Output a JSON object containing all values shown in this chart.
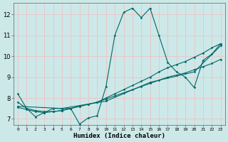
{
  "xlabel": "Humidex (Indice chaleur)",
  "ylabel": "",
  "bg_color": "#cde8e8",
  "grid_color": "#e8c8c8",
  "line_color": "#006868",
  "marker": "D",
  "markersize": 1.5,
  "linewidth": 0.8,
  "xlim": [
    -0.5,
    23.5
  ],
  "ylim": [
    6.7,
    12.55
  ],
  "xticks": [
    0,
    1,
    2,
    3,
    4,
    5,
    6,
    7,
    8,
    9,
    10,
    11,
    12,
    13,
    14,
    15,
    16,
    17,
    18,
    19,
    20,
    21,
    22,
    23
  ],
  "yticks": [
    7,
    8,
    9,
    10,
    11,
    12
  ],
  "series": [
    {
      "x": [
        0,
        1,
        2,
        3,
        4,
        5,
        6,
        7,
        8,
        9,
        10,
        11,
        12,
        13,
        14,
        15,
        16,
        17,
        18,
        19,
        20,
        21,
        22,
        23
      ],
      "y": [
        8.2,
        7.5,
        7.1,
        7.3,
        7.5,
        7.5,
        7.5,
        6.75,
        7.05,
        7.15,
        8.55,
        11.0,
        12.1,
        12.3,
        11.85,
        12.3,
        11.0,
        9.7,
        9.25,
        9.0,
        8.5,
        9.8,
        10.1,
        10.6
      ]
    },
    {
      "x": [
        0,
        1,
        2,
        3,
        4,
        5,
        6,
        7,
        8,
        9,
        10,
        11,
        12,
        13,
        14,
        15,
        16,
        17,
        18,
        19,
        20,
        21,
        22,
        23
      ],
      "y": [
        7.8,
        7.5,
        7.4,
        7.35,
        7.35,
        7.4,
        7.5,
        7.6,
        7.7,
        7.8,
        8.0,
        8.2,
        8.4,
        8.6,
        8.8,
        9.0,
        9.25,
        9.45,
        9.6,
        9.75,
        9.95,
        10.15,
        10.4,
        10.6
      ]
    },
    {
      "x": [
        0,
        1,
        2,
        3,
        4,
        5,
        6,
        7,
        8,
        9,
        10,
        11,
        12,
        13,
        14,
        15,
        16,
        17,
        18,
        19,
        20,
        21,
        22,
        23
      ],
      "y": [
        7.55,
        7.45,
        7.35,
        7.3,
        7.35,
        7.4,
        7.5,
        7.6,
        7.7,
        7.8,
        7.95,
        8.1,
        8.25,
        8.4,
        8.55,
        8.7,
        8.85,
        9.0,
        9.1,
        9.2,
        9.35,
        9.5,
        9.65,
        9.85
      ]
    },
    {
      "x": [
        0,
        5,
        10,
        15,
        20,
        23
      ],
      "y": [
        7.6,
        7.5,
        7.85,
        8.75,
        9.25,
        10.5
      ]
    }
  ]
}
